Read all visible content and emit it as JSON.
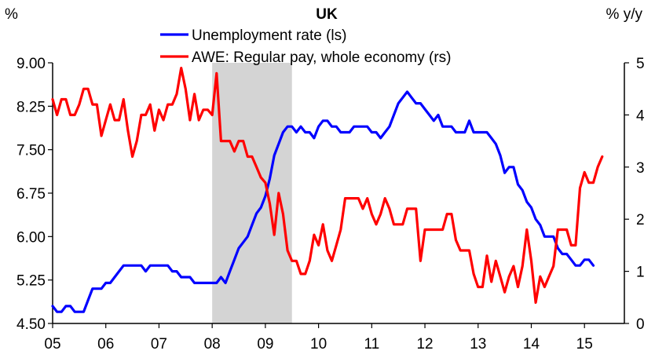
{
  "chart_data": {
    "type": "line",
    "title": "UK",
    "left_unit": "%",
    "right_unit": "% y/y",
    "x_tick_labels": [
      "05",
      "06",
      "07",
      "08",
      "09",
      "10",
      "11",
      "12",
      "13",
      "14",
      "15"
    ],
    "y_left": {
      "lim": [
        4.5,
        9.0
      ],
      "ticks": [
        "4.50",
        "5.25",
        "6.00",
        "6.75",
        "7.50",
        "8.25",
        "9.00"
      ]
    },
    "y_right": {
      "lim": [
        0,
        5
      ],
      "ticks": [
        "0",
        "1",
        "2",
        "3",
        "4",
        "5"
      ]
    },
    "shaded_period": {
      "from": 2008.0,
      "to": 2009.5,
      "color": "#d4d4d4"
    },
    "series": [
      {
        "name": "Unemployment rate (ls)",
        "axis": "left",
        "color": "#0000ff",
        "x_start": 2005.0,
        "step_years": 0.08333,
        "values": [
          4.8,
          4.7,
          4.7,
          4.8,
          4.8,
          4.7,
          4.7,
          4.7,
          4.9,
          5.1,
          5.1,
          5.1,
          5.2,
          5.2,
          5.3,
          5.4,
          5.5,
          5.5,
          5.5,
          5.5,
          5.5,
          5.4,
          5.5,
          5.5,
          5.5,
          5.5,
          5.5,
          5.4,
          5.4,
          5.3,
          5.3,
          5.3,
          5.2,
          5.2,
          5.2,
          5.2,
          5.2,
          5.2,
          5.3,
          5.2,
          5.4,
          5.6,
          5.8,
          5.9,
          6.0,
          6.2,
          6.4,
          6.5,
          6.7,
          7.0,
          7.4,
          7.6,
          7.8,
          7.9,
          7.9,
          7.8,
          7.9,
          7.8,
          7.8,
          7.7,
          7.9,
          8.0,
          8.0,
          7.9,
          7.9,
          7.8,
          7.8,
          7.8,
          7.9,
          7.9,
          7.9,
          7.9,
          7.8,
          7.8,
          7.7,
          7.8,
          7.9,
          8.1,
          8.3,
          8.4,
          8.5,
          8.4,
          8.3,
          8.3,
          8.2,
          8.1,
          8.0,
          8.1,
          7.9,
          7.9,
          7.9,
          7.8,
          7.8,
          7.8,
          8.0,
          7.8,
          7.8,
          7.8,
          7.8,
          7.7,
          7.6,
          7.4,
          7.1,
          7.2,
          7.2,
          6.9,
          6.8,
          6.6,
          6.5,
          6.3,
          6.2,
          6.0,
          6.0,
          6.0,
          5.8,
          5.7,
          5.7,
          5.6,
          5.5,
          5.5,
          5.6,
          5.6,
          5.5
        ]
      },
      {
        "name": "AWE: Regular pay, whole economy (rs)",
        "axis": "right",
        "color": "#ff0000",
        "x_start": 2005.0,
        "step_years": 0.08333,
        "values": [
          4.3,
          4.0,
          4.3,
          4.3,
          4.0,
          4.0,
          4.2,
          4.5,
          4.5,
          4.2,
          4.2,
          3.6,
          3.9,
          4.2,
          3.9,
          3.9,
          4.3,
          3.7,
          3.2,
          3.5,
          4.0,
          4.0,
          4.2,
          3.7,
          4.1,
          3.9,
          4.2,
          4.2,
          4.4,
          4.9,
          4.5,
          3.9,
          4.4,
          3.9,
          4.1,
          4.1,
          4.0,
          4.8,
          3.5,
          3.5,
          3.5,
          3.3,
          3.5,
          3.5,
          3.2,
          3.2,
          3.0,
          2.8,
          2.7,
          2.3,
          1.7,
          2.5,
          2.1,
          1.4,
          1.2,
          1.2,
          0.95,
          0.95,
          1.2,
          1.7,
          1.5,
          1.9,
          1.4,
          1.2,
          1.5,
          1.8,
          2.4,
          2.4,
          2.4,
          2.4,
          2.2,
          2.4,
          2.1,
          1.9,
          2.1,
          2.4,
          2.2,
          1.9,
          1.9,
          1.9,
          2.2,
          2.2,
          2.2,
          1.2,
          1.8,
          1.8,
          1.8,
          1.8,
          1.8,
          2.1,
          2.1,
          1.6,
          1.4,
          1.4,
          1.4,
          0.95,
          0.7,
          0.7,
          1.3,
          0.8,
          1.2,
          0.9,
          0.6,
          0.9,
          1.1,
          0.7,
          1.1,
          1.8,
          1.2,
          0.4,
          0.9,
          0.7,
          0.9,
          1.1,
          1.8,
          1.8,
          1.8,
          1.5,
          1.5,
          2.6,
          2.9,
          2.7,
          2.7,
          3.0,
          3.2
        ]
      }
    ]
  }
}
